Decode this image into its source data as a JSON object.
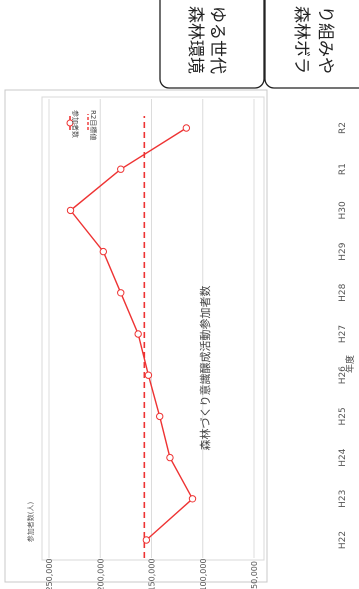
{
  "callouts": [
    {
      "text_line1": "森林環境",
      "text_line2": "ゆる世代"
    },
    {
      "text_line1": "森林ボラ",
      "text_line2": "り組みや"
    }
  ],
  "chart_data": {
    "type": "line",
    "title": "森林づくり意識醸成活動参加者数",
    "xlabel": "年度",
    "ylabel": "参加者数(人)",
    "categories": [
      "H22",
      "H23",
      "H24",
      "H25",
      "H26",
      "H27",
      "H28",
      "H29",
      "H30",
      "R1",
      "R2"
    ],
    "ylim": [
      50000,
      250000
    ],
    "yticks": [
      50000,
      100000,
      150000,
      200000,
      250000
    ],
    "ytick_labels": [
      "50,000",
      "100,000",
      "150,000",
      "200,000",
      "250,000"
    ],
    "series": [
      {
        "name": "参加者数",
        "color": "#ee3333",
        "values": [
          155000,
          110000,
          132000,
          142000,
          153000,
          163000,
          180000,
          197000,
          229000,
          180000,
          116000
        ]
      },
      {
        "name": "R2目標値",
        "color": "#ee3333",
        "style": "dashed",
        "values": [
          157000,
          157000,
          157000,
          157000,
          157000,
          157000,
          157000,
          157000,
          157000,
          157000,
          157000
        ]
      }
    ],
    "grid": true,
    "legend": "top-left"
  }
}
